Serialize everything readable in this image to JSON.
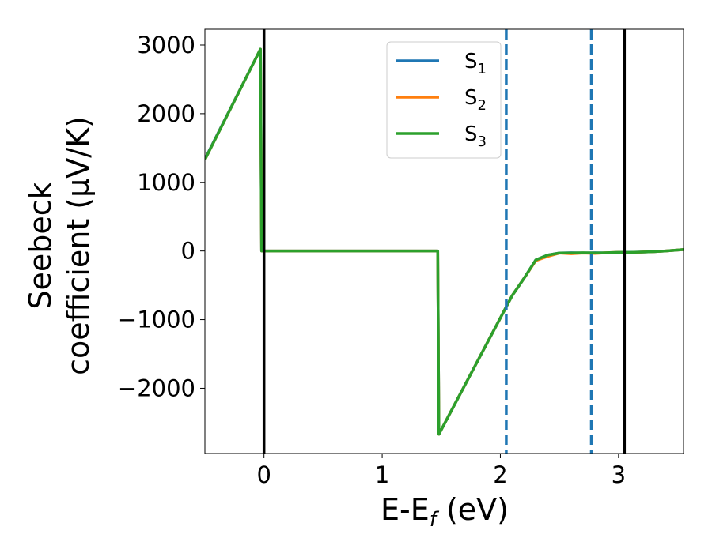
{
  "chart_data": {
    "type": "line",
    "xlabel": "E-E",
    "xlabel_sub": "f",
    "xlabel_unit": " (eV)",
    "ylabel_line1": "Seebeck",
    "ylabel_line2": "coefficient  (μV/K)",
    "xlim": [
      -0.5,
      3.55
    ],
    "ylim": [
      -2950,
      3230
    ],
    "xticks": [
      0,
      1,
      2,
      3
    ],
    "xtick_labels": [
      "0",
      "1",
      "2",
      "3"
    ],
    "yticks": [
      3000,
      2000,
      1000,
      0,
      -1000,
      -2000
    ],
    "ytick_labels": [
      "3000",
      "2000",
      "1000",
      "0",
      "−1000",
      "−2000"
    ],
    "vlines_solid": [
      0.0,
      3.05
    ],
    "vlines_dashed": [
      2.05,
      2.77
    ],
    "legend_position": "upper center",
    "series": [
      {
        "name": "S",
        "sub": "1",
        "color": "#1f77b4",
        "x": [
          -0.5,
          -0.03,
          -0.02,
          1.47,
          1.48,
          2.1,
          2.2,
          2.3,
          2.4,
          2.5,
          2.6,
          2.7,
          2.8,
          2.9,
          3.0,
          3.1,
          3.2,
          3.3,
          3.4,
          3.55
        ],
        "y": [
          1340,
          2940,
          0,
          0,
          -2670,
          -650,
          -400,
          -130,
          -60,
          -30,
          -25,
          -30,
          -25,
          -30,
          -20,
          -20,
          -15,
          -10,
          0,
          20
        ]
      },
      {
        "name": "S",
        "sub": "2",
        "color": "#ff7f0e",
        "x": [
          -0.5,
          -0.03,
          -0.02,
          1.47,
          1.48,
          2.1,
          2.2,
          2.3,
          2.4,
          2.5,
          2.6,
          2.7,
          2.8,
          2.9,
          3.0,
          3.1,
          3.2,
          3.3,
          3.4,
          3.55
        ],
        "y": [
          1330,
          2940,
          0,
          0,
          -2670,
          -650,
          -400,
          -140,
          -80,
          -30,
          -40,
          -30,
          -35,
          -25,
          -20,
          -25,
          -15,
          -10,
          0,
          20
        ]
      },
      {
        "name": "S",
        "sub": "3",
        "color": "#2ca02c",
        "x": [
          -0.5,
          -0.03,
          -0.02,
          1.47,
          1.48,
          2.1,
          2.2,
          2.3,
          2.4,
          2.5,
          2.6,
          2.7,
          2.8,
          2.9,
          3.0,
          3.1,
          3.2,
          3.3,
          3.4,
          3.55
        ],
        "y": [
          1330,
          2940,
          0,
          0,
          -2670,
          -650,
          -400,
          -130,
          -60,
          -30,
          -30,
          -25,
          -30,
          -25,
          -20,
          -20,
          -15,
          -10,
          0,
          20
        ]
      }
    ]
  }
}
